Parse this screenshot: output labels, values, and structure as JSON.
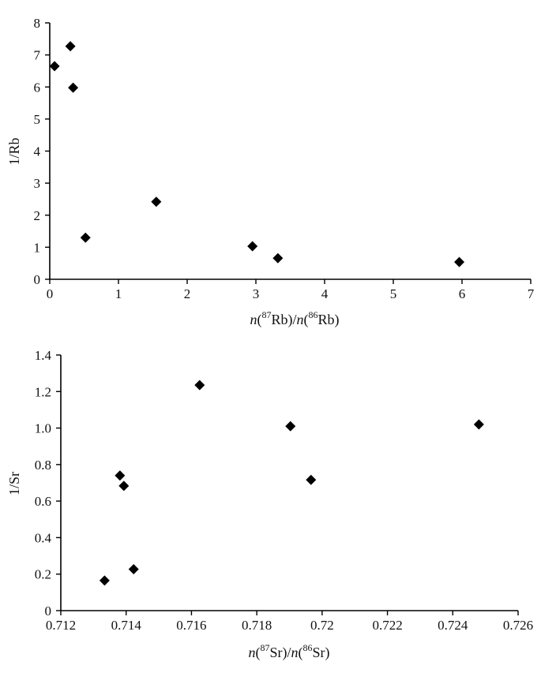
{
  "chart_data": [
    {
      "type": "scatter",
      "title": "",
      "ylabel": "1/Rb",
      "xlabel": {
        "n1": "n",
        "iso1": "87",
        "el1": "Rb",
        "sep": ")/",
        "n2": "n",
        "iso2": "86",
        "el2": "Rb"
      },
      "xlim": [
        0,
        7
      ],
      "ylim": [
        0,
        8
      ],
      "xticks": [
        "0",
        "1",
        "2",
        "3",
        "4",
        "5",
        "6",
        "7"
      ],
      "yticks": [
        "0",
        "1",
        "2",
        "3",
        "4",
        "5",
        "6",
        "7",
        "8"
      ],
      "points": [
        {
          "x": 0.07,
          "y": 6.65
        },
        {
          "x": 0.3,
          "y": 7.27
        },
        {
          "x": 0.34,
          "y": 5.98
        },
        {
          "x": 0.52,
          "y": 1.3
        },
        {
          "x": 1.55,
          "y": 2.42
        },
        {
          "x": 2.95,
          "y": 1.03
        },
        {
          "x": 3.32,
          "y": 0.66
        },
        {
          "x": 5.96,
          "y": 0.54
        }
      ],
      "grid": false,
      "legend": null
    },
    {
      "type": "scatter",
      "title": "",
      "ylabel": "1/Sr",
      "xlabel": {
        "n1": "n",
        "iso1": "87",
        "el1": "Sr",
        "sep": ")/",
        "n2": "n",
        "iso2": "86",
        "el2": "Sr"
      },
      "xlim": [
        0.712,
        0.726
      ],
      "ylim": [
        0,
        1.4
      ],
      "xticks": [
        "0.712",
        "0.714",
        "0.716",
        "0.718",
        "0.72",
        "0.722",
        "0.724",
        "0.726"
      ],
      "yticks": [
        "0",
        "0.2",
        "0.4",
        "0.6",
        "0.8",
        "1.0",
        "1.2",
        "1.4"
      ],
      "points": [
        {
          "x": 0.71334,
          "y": 0.165
        },
        {
          "x": 0.71381,
          "y": 0.74
        },
        {
          "x": 0.71393,
          "y": 0.683
        },
        {
          "x": 0.71423,
          "y": 0.227
        },
        {
          "x": 0.71625,
          "y": 1.235
        },
        {
          "x": 0.71903,
          "y": 1.01
        },
        {
          "x": 0.71966,
          "y": 0.716
        },
        {
          "x": 0.7248,
          "y": 1.02
        }
      ],
      "grid": false,
      "legend": null
    }
  ]
}
